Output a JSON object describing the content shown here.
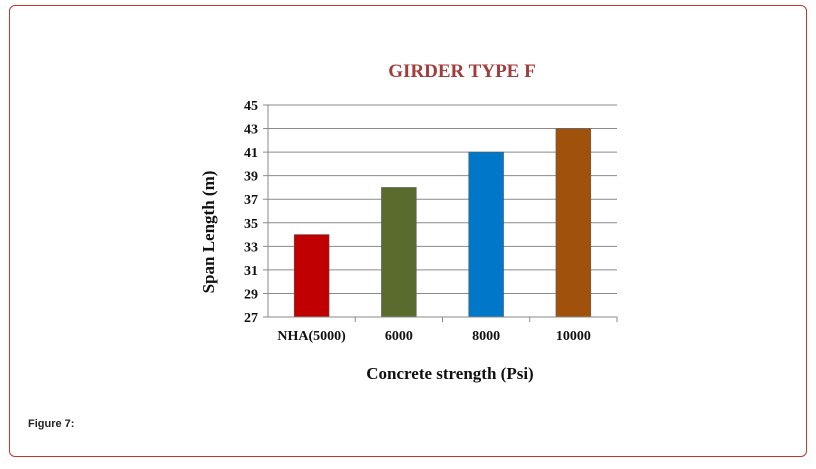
{
  "figure": {
    "caption": "Figure 7:"
  },
  "chart_data": {
    "type": "bar",
    "title": "GIRDER TYPE F",
    "xlabel": "Concrete strength (Psi)",
    "ylabel": "Span Length (m)",
    "categories": [
      "NHA(5000)",
      "6000",
      "8000",
      "10000"
    ],
    "values": [
      34,
      38,
      41,
      43
    ],
    "colors": [
      "#c00000",
      "#5a6b2e",
      "#0077c8",
      "#a0520c"
    ],
    "title_color": "#a23b3b",
    "ylim": [
      27,
      45
    ],
    "yticks": [
      "27",
      "29",
      "31",
      "33",
      "35",
      "37",
      "39",
      "41",
      "43",
      "45"
    ],
    "grid": true,
    "legend": "none"
  }
}
